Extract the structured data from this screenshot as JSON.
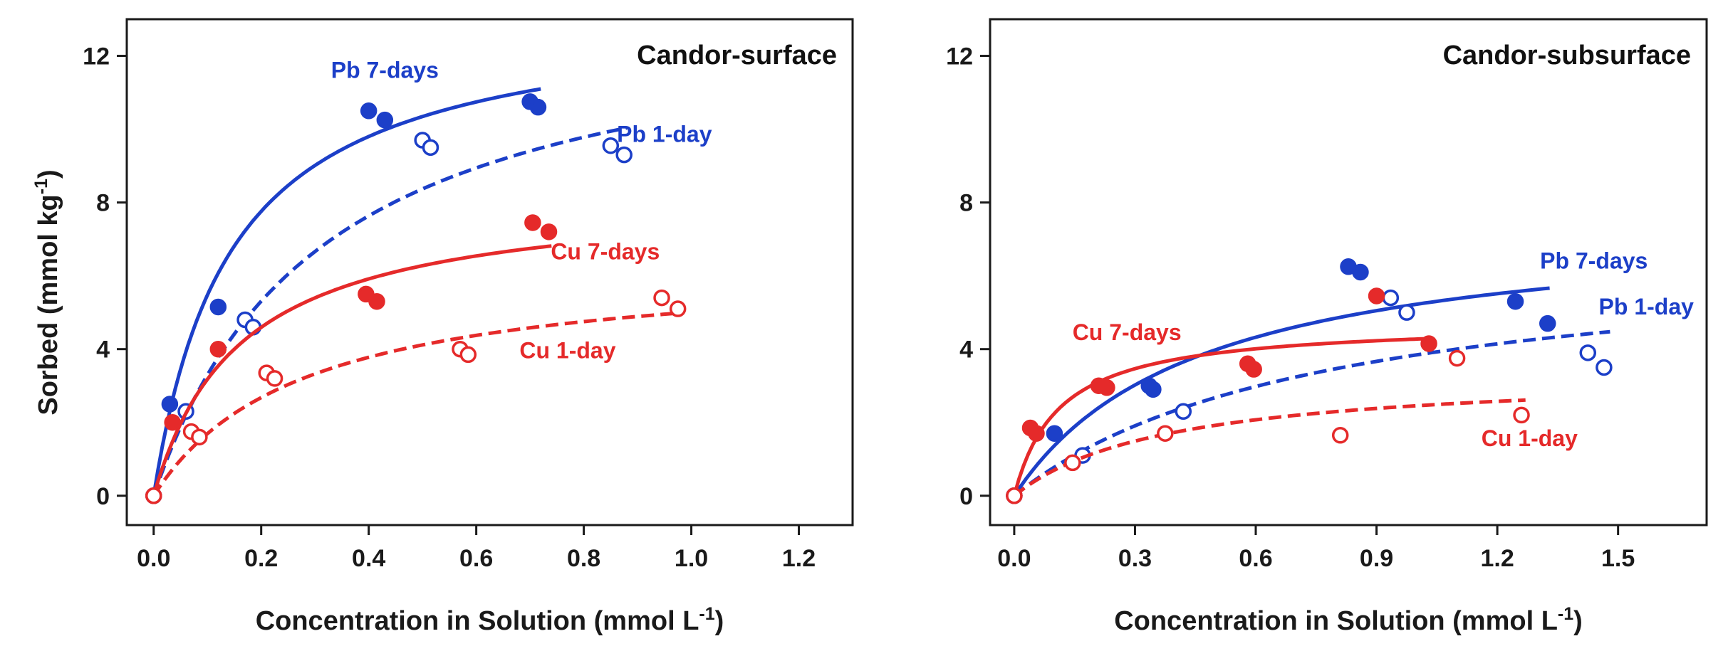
{
  "figure": {
    "ylabel_main": "Sorbed (mmol kg",
    "ylabel_sup": "-1",
    "ylabel_end": ")"
  },
  "chart_data": [
    {
      "type": "scatter",
      "title": "Candor-surface",
      "xlabel": "Concentration in Solution (mmol L",
      "xlabel_sup": "-1",
      "xlabel_end": ")",
      "ylabel": "Sorbed (mmol kg-1)",
      "xlim": [
        -0.05,
        1.3
      ],
      "ylim": [
        -0.8,
        13.0
      ],
      "xticks": [
        0.0,
        0.2,
        0.4,
        0.6,
        0.8,
        1.0,
        1.2
      ],
      "xtick_labels": [
        "0.0",
        "0.2",
        "0.4",
        "0.6",
        "0.8",
        "1.0",
        "1.2"
      ],
      "yticks": [
        0,
        4,
        8,
        12
      ],
      "ytick_labels": [
        "0",
        "4",
        "8",
        "12"
      ],
      "series": [
        {
          "name": "Pb 7-days",
          "color": "#1c3fc8",
          "filled": true,
          "dash": false,
          "label_at": [
            0.43,
            11.4
          ],
          "points": [
            [
              0.0,
              0.0
            ],
            [
              0.03,
              2.5
            ],
            [
              0.12,
              5.15
            ],
            [
              0.4,
              10.5
            ],
            [
              0.43,
              10.25
            ],
            [
              0.7,
              10.75
            ],
            [
              0.715,
              10.6
            ]
          ],
          "curve": {
            "qmax": 13.3,
            "k": 7.0,
            "xmax": 0.72
          }
        },
        {
          "name": "Pb 1-day",
          "color": "#1c3fc8",
          "filled": false,
          "dash": true,
          "label_at": [
            0.95,
            9.65
          ],
          "points": [
            [
              0.0,
              0.0
            ],
            [
              0.06,
              2.3
            ],
            [
              0.17,
              4.8
            ],
            [
              0.185,
              4.6
            ],
            [
              0.5,
              9.7
            ],
            [
              0.515,
              9.5
            ],
            [
              0.85,
              9.55
            ],
            [
              0.875,
              9.3
            ]
          ],
          "curve": {
            "qmax": 13.6,
            "k": 3.2,
            "xmax": 0.88
          }
        },
        {
          "name": "Cu 7-days",
          "color": "#e52a2a",
          "filled": true,
          "dash": false,
          "label_at": [
            0.84,
            6.45
          ],
          "points": [
            [
              0.0,
              0.0
            ],
            [
              0.035,
              2.0
            ],
            [
              0.12,
              4.0
            ],
            [
              0.395,
              5.5
            ],
            [
              0.415,
              5.3
            ],
            [
              0.705,
              7.45
            ],
            [
              0.735,
              7.2
            ]
          ],
          "curve": {
            "qmax": 8.3,
            "k": 6.2,
            "xmax": 0.74
          }
        },
        {
          "name": "Cu 1-day",
          "color": "#e52a2a",
          "filled": false,
          "dash": true,
          "label_at": [
            0.77,
            3.75
          ],
          "points": [
            [
              0.0,
              0.0
            ],
            [
              0.07,
              1.75
            ],
            [
              0.085,
              1.6
            ],
            [
              0.21,
              3.35
            ],
            [
              0.225,
              3.2
            ],
            [
              0.57,
              4.0
            ],
            [
              0.585,
              3.85
            ],
            [
              0.945,
              5.4
            ],
            [
              0.975,
              5.1
            ]
          ],
          "curve": {
            "qmax": 6.4,
            "k": 3.6,
            "xmax": 0.98
          }
        }
      ]
    },
    {
      "type": "scatter",
      "title": "Candor-subsurface",
      "xlabel": "Concentration in Solution (mmol L",
      "xlabel_sup": "-1",
      "xlabel_end": ")",
      "ylabel": "Sorbed (mmol kg-1)",
      "xlim": [
        -0.06,
        1.72
      ],
      "ylim": [
        -0.8,
        13.0
      ],
      "xticks": [
        0.0,
        0.3,
        0.6,
        0.9,
        1.2,
        1.5
      ],
      "xtick_labels": [
        "0.0",
        "0.3",
        "0.6",
        "0.9",
        "1.2",
        "1.5"
      ],
      "yticks": [
        0,
        4,
        8,
        12
      ],
      "ytick_labels": [
        "0",
        "4",
        "8",
        "12"
      ],
      "series": [
        {
          "name": "Pb 7-days",
          "color": "#1c3fc8",
          "filled": true,
          "dash": false,
          "label_at": [
            1.44,
            6.2
          ],
          "points": [
            [
              0.0,
              0.0
            ],
            [
              0.1,
              1.7
            ],
            [
              0.335,
              3.0
            ],
            [
              0.345,
              2.9
            ],
            [
              0.83,
              6.25
            ],
            [
              0.86,
              6.1
            ],
            [
              1.245,
              5.3
            ],
            [
              1.325,
              4.7
            ]
          ],
          "curve": {
            "qmax": 7.6,
            "k": 2.2,
            "xmax": 1.33
          }
        },
        {
          "name": "Pb 1-day",
          "color": "#1c3fc8",
          "filled": false,
          "dash": true,
          "label_at": [
            1.57,
            4.95
          ],
          "points": [
            [
              0.0,
              0.0
            ],
            [
              0.17,
              1.1
            ],
            [
              0.42,
              2.3
            ],
            [
              0.935,
              5.4
            ],
            [
              0.975,
              5.0
            ],
            [
              1.425,
              3.9
            ],
            [
              1.465,
              3.5
            ]
          ],
          "curve": {
            "qmax": 6.8,
            "k": 1.3,
            "xmax": 1.48
          }
        },
        {
          "name": "Cu 7-days",
          "color": "#e52a2a",
          "filled": true,
          "dash": false,
          "label_at": [
            0.28,
            4.25
          ],
          "points": [
            [
              0.0,
              0.0
            ],
            [
              0.04,
              1.85
            ],
            [
              0.055,
              1.7
            ],
            [
              0.21,
              3.0
            ],
            [
              0.23,
              2.95
            ],
            [
              0.58,
              3.6
            ],
            [
              0.595,
              3.45
            ],
            [
              0.9,
              5.45
            ],
            [
              1.03,
              4.15
            ]
          ],
          "curve": {
            "qmax": 4.75,
            "k": 9.0,
            "xmax": 1.04
          }
        },
        {
          "name": "Cu 1-day",
          "color": "#e52a2a",
          "filled": false,
          "dash": true,
          "label_at": [
            1.28,
            1.35
          ],
          "points": [
            [
              0.0,
              0.0
            ],
            [
              0.145,
              0.9
            ],
            [
              0.375,
              1.7
            ],
            [
              0.81,
              1.65
            ],
            [
              1.1,
              3.75
            ],
            [
              1.26,
              2.2
            ]
          ],
          "curve": {
            "qmax": 3.4,
            "k": 2.6,
            "xmax": 1.27
          }
        }
      ]
    }
  ]
}
